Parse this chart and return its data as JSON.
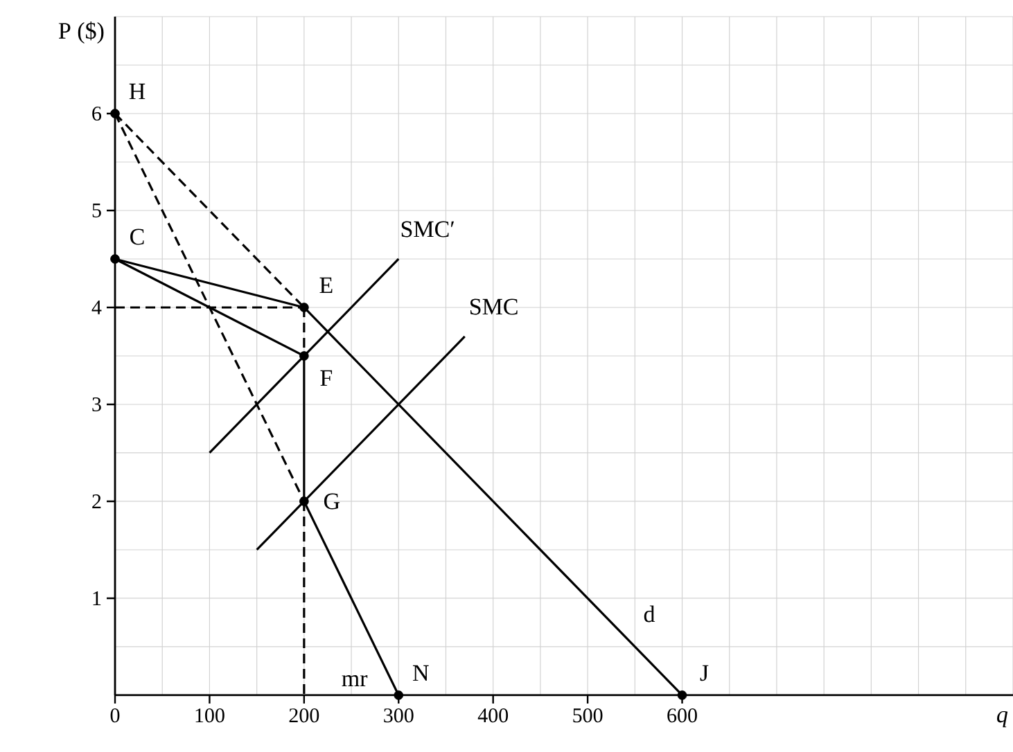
{
  "chart_data": {
    "type": "line",
    "xlabel": "q",
    "ylabel": "P ($)",
    "xlim": [
      0,
      950
    ],
    "ylim": [
      0,
      7
    ],
    "xticks": [
      0,
      100,
      200,
      300,
      400,
      500,
      600
    ],
    "yticks": [
      1,
      2,
      3,
      4,
      5,
      6
    ],
    "grid": true,
    "marker": "none",
    "series": [
      {
        "name": "d",
        "color": "#000000",
        "line_style": "solid",
        "x": [
          0,
          200,
          600
        ],
        "values": [
          4.5,
          4,
          0
        ]
      },
      {
        "name": "mr",
        "color": "#000000",
        "line_style": "solid",
        "x": [
          0,
          200,
          200,
          300
        ],
        "values": [
          4.5,
          3.5,
          2,
          0
        ]
      },
      {
        "color": "#000000",
        "line_style": "dashed",
        "x": [
          0,
          200
        ],
        "values": [
          6,
          4
        ]
      },
      {
        "color": "#000000",
        "line_style": "dashed",
        "x": [
          0,
          200
        ],
        "values": [
          6,
          2
        ]
      },
      {
        "color": "#000000",
        "line_style": "dashed",
        "x": [
          0,
          200
        ],
        "values": [
          4,
          4
        ]
      },
      {
        "color": "#000000",
        "line_style": "dashed",
        "x": [
          200,
          200
        ],
        "values": [
          4,
          3.5
        ]
      },
      {
        "color": "#000000",
        "line_style": "dashed",
        "x": [
          200,
          200
        ],
        "values": [
          2,
          0
        ]
      },
      {
        "name": "SMC′",
        "color": "#000000",
        "line_style": "solid",
        "x": [
          100,
          300
        ],
        "values": [
          2.5,
          4.5
        ]
      },
      {
        "name": "SMC",
        "color": "#000000",
        "line_style": "solid",
        "x": [
          150,
          370
        ],
        "values": [
          1.5,
          3.7
        ]
      },
      {
        "type": "scatter",
        "color": "#000000",
        "marker": "circle",
        "x": [
          0,
          0,
          200,
          200,
          200,
          300,
          600
        ],
        "values": [
          6,
          4.5,
          4,
          3.5,
          2,
          0,
          0
        ]
      }
    ],
    "annotations": [
      {
        "text": "H",
        "x": 0,
        "y": 6
      },
      {
        "text": "C",
        "x": 0,
        "y": 4.5
      },
      {
        "text": "E",
        "x": 200,
        "y": 4
      },
      {
        "text": "F",
        "x": 200,
        "y": 3.5
      },
      {
        "text": "G",
        "x": 200,
        "y": 2
      },
      {
        "text": "N",
        "x": 300,
        "y": 0
      },
      {
        "text": "J",
        "x": 600,
        "y": 0
      }
    ]
  }
}
